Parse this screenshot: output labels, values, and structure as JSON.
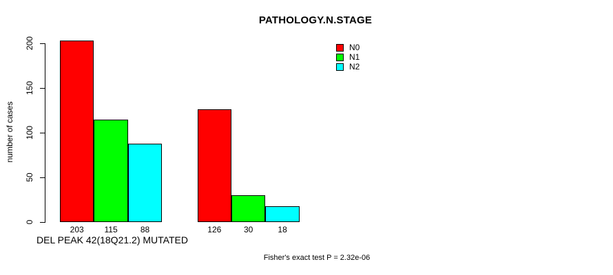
{
  "chart_data": {
    "type": "bar",
    "title": "PATHOLOGY.N.STAGE",
    "ylabel": "number of cases",
    "xlabel": "DEL PEAK 42(18Q21.2) MUTATED",
    "annotation": "Fisher's exact test P = 2.32e-06",
    "ylim": [
      0,
      200
    ],
    "yticks": [
      0,
      50,
      100,
      150,
      200
    ],
    "grid": false,
    "legend_position": "top-right",
    "legend_entries": [
      "N0",
      "N1",
      "N2"
    ],
    "series": [
      {
        "name": "N0",
        "color": "#ff0000",
        "values": [
          203,
          126
        ]
      },
      {
        "name": "N1",
        "color": "#00ff00",
        "values": [
          115,
          30
        ]
      },
      {
        "name": "N2",
        "color": "#00ffff",
        "values": [
          88,
          18
        ]
      }
    ],
    "bar_value_labels": [
      [
        203,
        115,
        88
      ],
      [
        126,
        30,
        18
      ]
    ]
  }
}
